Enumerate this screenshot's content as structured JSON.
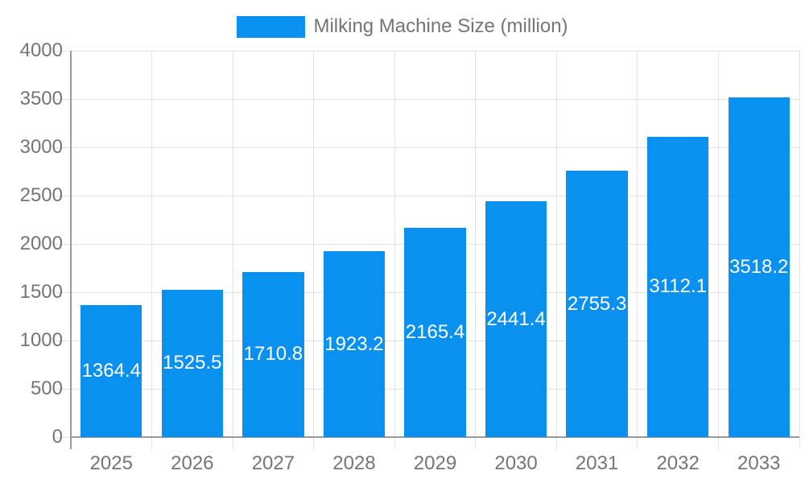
{
  "chart_data": {
    "type": "bar",
    "title": "",
    "legend": "Milking Machine Size (million)",
    "legend_position": "top",
    "categories": [
      "2025",
      "2026",
      "2027",
      "2028",
      "2029",
      "2030",
      "2031",
      "2032",
      "2033"
    ],
    "values": [
      1364.4,
      1525.5,
      1710.8,
      1923.2,
      2165.4,
      2441.4,
      2755.3,
      3112.1,
      3518.2
    ],
    "value_labels": [
      "1364.4",
      "1525.5",
      "1710.8",
      "1923.2",
      "2165.4",
      "2441.4",
      "2755.3",
      "3112.1",
      "3518.2"
    ],
    "xlabel": "",
    "ylabel": "",
    "ylim": [
      0,
      4000
    ],
    "y_ticks": [
      0,
      500,
      1000,
      1500,
      2000,
      2500,
      3000,
      3500,
      4000
    ],
    "y_tick_labels": [
      "0",
      "500",
      "1000",
      "1500",
      "2000",
      "2500",
      "3000",
      "3500",
      "4000"
    ],
    "grid": true,
    "colors": {
      "bar": "#0a91f0",
      "grid": "#e3e3e3",
      "axis": "#9a9a9a",
      "text": "#757575",
      "bar_label": "#ffffff",
      "background": "#ffffff"
    }
  }
}
